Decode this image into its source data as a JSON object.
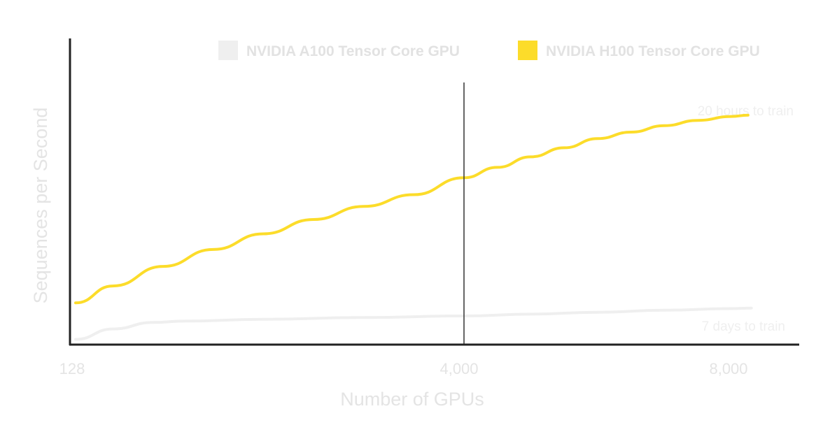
{
  "chart_data": {
    "type": "line",
    "xlabel": "Number of GPUs",
    "ylabel": "Sequences per Second",
    "x_ticks": [
      "128",
      "4,000",
      "8,000"
    ],
    "x_tick_values": [
      128,
      4000,
      8000
    ],
    "legend_position": "top-right",
    "grid": false,
    "reference_line_x": 4000,
    "y_range_relative": [
      0,
      1
    ],
    "series": [
      {
        "name": "NVIDIA A100 Tensor Core GPU",
        "color": "#efefef",
        "x": [
          128,
          500,
          900,
          1200,
          2000,
          3000,
          4000,
          5000,
          6000,
          7000,
          8000,
          8300
        ],
        "y": [
          0.02,
          0.06,
          0.085,
          0.09,
          0.097,
          0.104,
          0.11,
          0.117,
          0.124,
          0.132,
          0.138,
          0.14
        ]
      },
      {
        "name": "NVIDIA H100 Tensor Core GPU",
        "color": "#fcdc2a",
        "x": [
          128,
          500,
          1000,
          1500,
          2000,
          2500,
          3000,
          3500,
          4000,
          4500,
          5000,
          5500,
          6000,
          6500,
          7000,
          7500,
          8000,
          8250
        ],
        "y": [
          0.16,
          0.225,
          0.3,
          0.365,
          0.425,
          0.48,
          0.53,
          0.575,
          0.64,
          0.68,
          0.72,
          0.755,
          0.79,
          0.815,
          0.84,
          0.86,
          0.875,
          0.88
        ]
      }
    ],
    "annotations": [
      "20 hours to train",
      "7 days to train"
    ]
  }
}
